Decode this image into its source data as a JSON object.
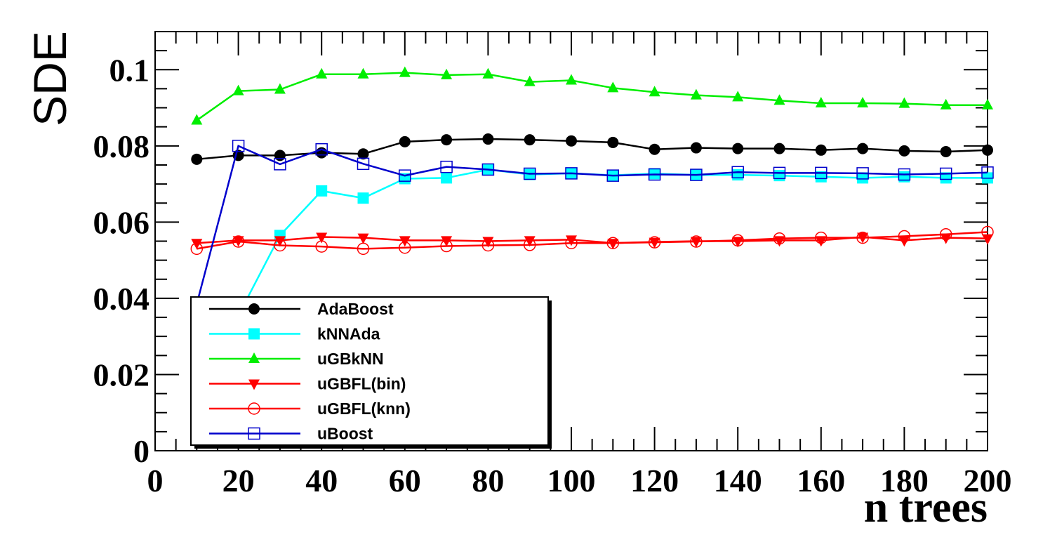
{
  "chart_data": {
    "type": "line",
    "title": "",
    "xlabel": "n trees",
    "ylabel": "SDE",
    "xlim": [
      0,
      200
    ],
    "ylim": [
      0,
      0.11
    ],
    "x_ticks": [
      0,
      20,
      40,
      60,
      80,
      100,
      120,
      140,
      160,
      180,
      200
    ],
    "x_tick_labels": [
      "0",
      "20",
      "40",
      "60",
      "80",
      "100",
      "120",
      "140",
      "160",
      "180",
      "200"
    ],
    "y_ticks": [
      0,
      0.02,
      0.04,
      0.06,
      0.08,
      0.1
    ],
    "y_tick_labels": [
      "0",
      "0.02",
      "0.04",
      "0.06",
      "0.08",
      "0.1"
    ],
    "grid": false,
    "legend_position": "bottom-left",
    "x": [
      10,
      20,
      30,
      40,
      50,
      60,
      70,
      80,
      90,
      100,
      110,
      120,
      130,
      140,
      150,
      160,
      170,
      180,
      190,
      200
    ],
    "series": [
      {
        "name": "AdaBoost",
        "color": "#000000",
        "marker": "filled-circle",
        "values": [
          0.0765,
          0.0775,
          0.0775,
          0.0782,
          0.0779,
          0.0811,
          0.0816,
          0.0818,
          0.0816,
          0.0813,
          0.0809,
          0.0791,
          0.0795,
          0.0793,
          0.0793,
          0.0789,
          0.0793,
          0.0787,
          0.0785,
          0.0789
        ]
      },
      {
        "name": "kNNAda",
        "color": "#00ffff",
        "marker": "filled-square",
        "values": [
          0.0385,
          0.0355,
          0.0565,
          0.0682,
          0.0663,
          0.0714,
          0.0716,
          0.0738,
          0.0725,
          0.0728,
          0.0723,
          0.0727,
          0.0724,
          0.0724,
          0.0722,
          0.0719,
          0.0716,
          0.0719,
          0.0716,
          0.0716
        ]
      },
      {
        "name": "uGBkNN",
        "color": "#00ee00",
        "marker": "filled-triangle-up",
        "values": [
          0.0867,
          0.0944,
          0.0948,
          0.0988,
          0.0988,
          0.0992,
          0.0986,
          0.0988,
          0.0968,
          0.0972,
          0.0952,
          0.0941,
          0.0933,
          0.0928,
          0.0919,
          0.0912,
          0.0912,
          0.0911,
          0.0907,
          0.0907
        ]
      },
      {
        "name": "uGBFL(bin)",
        "color": "#ff0000",
        "marker": "filled-triangle-down",
        "values": [
          0.0545,
          0.0552,
          0.0552,
          0.0561,
          0.0559,
          0.0552,
          0.0552,
          0.055,
          0.0552,
          0.0554,
          0.0545,
          0.0548,
          0.055,
          0.055,
          0.0552,
          0.0552,
          0.0561,
          0.0552,
          0.0559,
          0.0557
        ]
      },
      {
        "name": "uGBFL(knn)",
        "color": "#ff0000",
        "marker": "open-circle",
        "values": [
          0.053,
          0.0549,
          0.0539,
          0.0536,
          0.053,
          0.0533,
          0.0537,
          0.0539,
          0.054,
          0.0545,
          0.0545,
          0.0547,
          0.0549,
          0.0552,
          0.0557,
          0.0559,
          0.0559,
          0.0563,
          0.0568,
          0.0574
        ]
      },
      {
        "name": "uBoost",
        "color": "#0000cc",
        "marker": "open-square",
        "values": [
          0.0385,
          0.08,
          0.0752,
          0.0791,
          0.0753,
          0.0722,
          0.0745,
          0.0738,
          0.0727,
          0.0728,
          0.0722,
          0.0725,
          0.0724,
          0.0731,
          0.0729,
          0.0729,
          0.0728,
          0.0725,
          0.0727,
          0.073
        ]
      }
    ]
  }
}
